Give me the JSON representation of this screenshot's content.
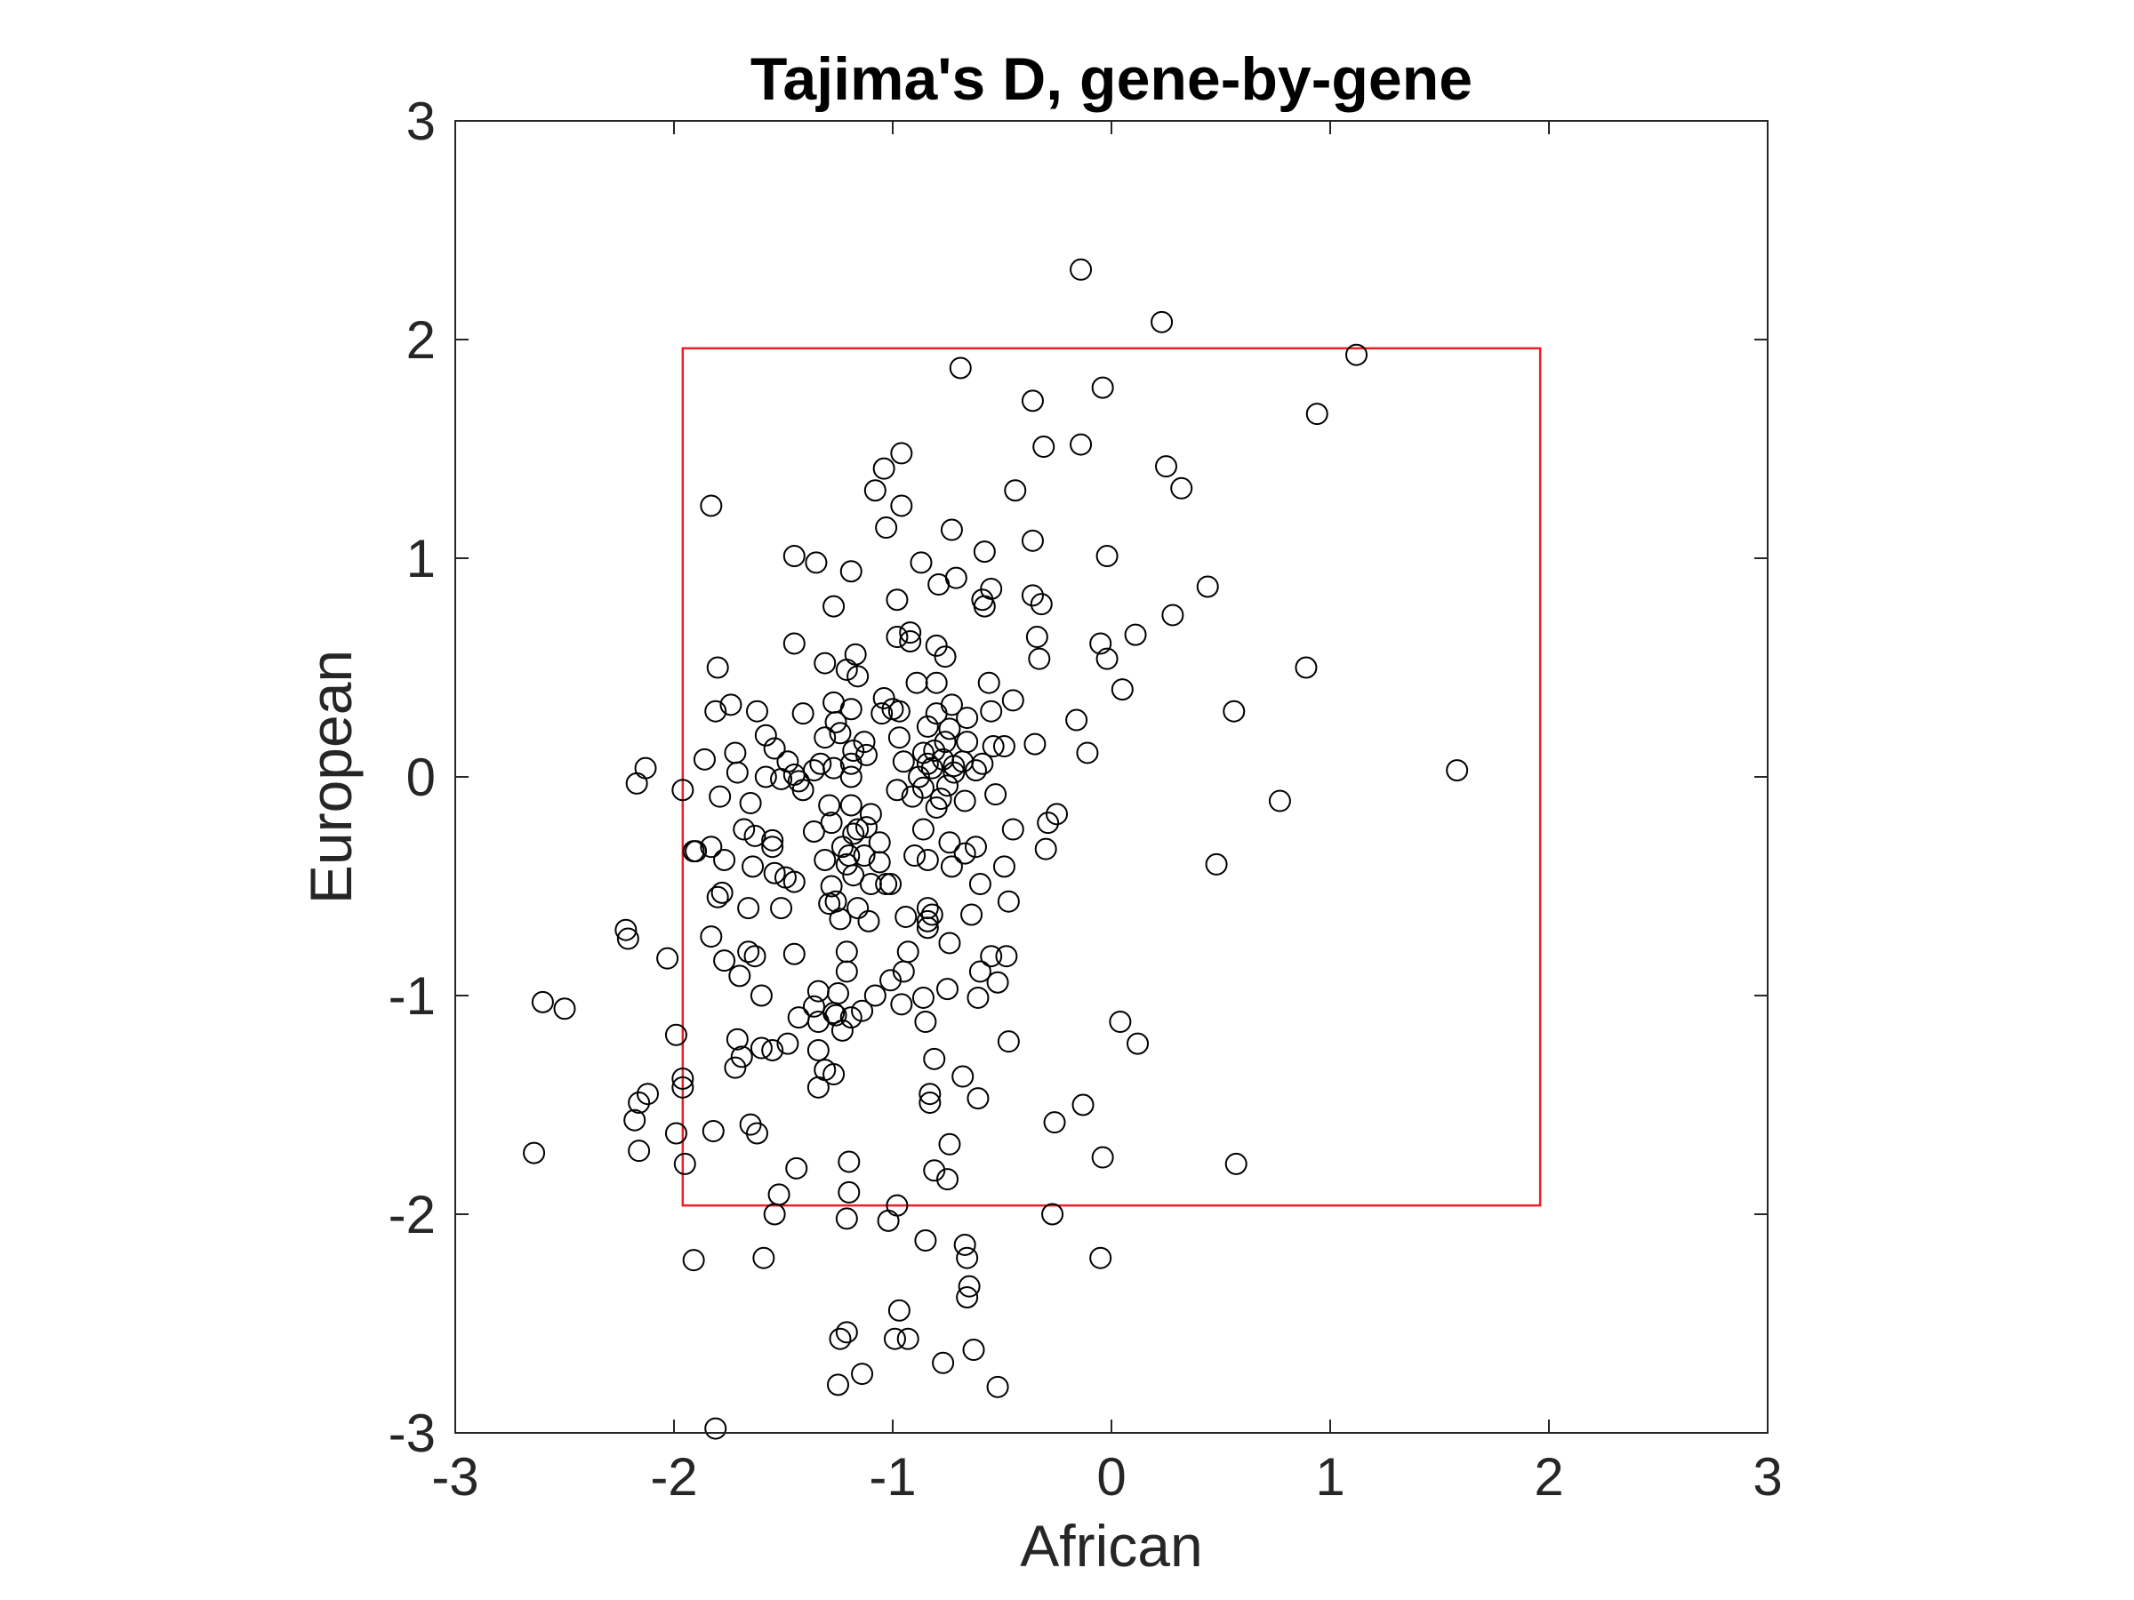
{
  "chart_data": {
    "type": "scatter",
    "title": "Tajima's D, gene-by-gene",
    "xlabel": "African",
    "ylabel": "European",
    "xlim": [
      -3,
      3
    ],
    "ylim": [
      -3,
      3
    ],
    "xticks": [
      "-3",
      "-2",
      "-1",
      "0",
      "1",
      "2",
      "3"
    ],
    "yticks": [
      "-3",
      "-2",
      "-1",
      "0",
      "1",
      "2",
      "3"
    ],
    "grid": false,
    "marker": "open-circle",
    "colors": {
      "marker": "#000000",
      "box": "#e8202a",
      "axis": "#262626"
    },
    "reference_box": {
      "x": [
        -1.96,
        1.96
      ],
      "y": [
        -1.96,
        1.96
      ]
    },
    "points": [
      [
        -0.14,
        2.32
      ],
      [
        0.23,
        2.08
      ],
      [
        1.12,
        1.93
      ],
      [
        -0.69,
        1.87
      ],
      [
        -0.04,
        1.78
      ],
      [
        -0.36,
        1.72
      ],
      [
        0.94,
        1.66
      ],
      [
        -0.31,
        1.51
      ],
      [
        -0.14,
        1.52
      ],
      [
        -0.96,
        1.48
      ],
      [
        -1.04,
        1.41
      ],
      [
        0.25,
        1.42
      ],
      [
        -0.44,
        1.31
      ],
      [
        0.32,
        1.32
      ],
      [
        -1.08,
        1.31
      ],
      [
        -1.83,
        1.24
      ],
      [
        -0.96,
        1.24
      ],
      [
        -1.03,
        1.14
      ],
      [
        -0.73,
        1.13
      ],
      [
        -0.36,
        1.08
      ],
      [
        -1.45,
        1.01
      ],
      [
        -0.58,
        1.03
      ],
      [
        -0.02,
        1.01
      ],
      [
        -0.87,
        0.98
      ],
      [
        -1.35,
        0.98
      ],
      [
        -1.19,
        0.94
      ],
      [
        -0.71,
        0.91
      ],
      [
        -0.79,
        0.88
      ],
      [
        -0.55,
        0.86
      ],
      [
        0.44,
        0.87
      ],
      [
        -0.36,
        0.83
      ],
      [
        -0.98,
        0.81
      ],
      [
        -0.59,
        0.81
      ],
      [
        -0.32,
        0.79
      ],
      [
        -1.27,
        0.78
      ],
      [
        -0.58,
        0.78
      ],
      [
        0.28,
        0.74
      ],
      [
        -0.92,
        0.66
      ],
      [
        -0.34,
        0.64
      ],
      [
        0.11,
        0.65
      ],
      [
        -0.98,
        0.64
      ],
      [
        -0.92,
        0.62
      ],
      [
        -0.05,
        0.61
      ],
      [
        -1.45,
        0.61
      ],
      [
        -0.8,
        0.6
      ],
      [
        -1.17,
        0.56
      ],
      [
        -0.76,
        0.55
      ],
      [
        -0.33,
        0.54
      ],
      [
        -0.02,
        0.54
      ],
      [
        0.89,
        0.5
      ],
      [
        -1.8,
        0.5
      ],
      [
        -1.31,
        0.52
      ],
      [
        -1.21,
        0.49
      ],
      [
        -1.16,
        0.46
      ],
      [
        -0.8,
        0.43
      ],
      [
        -0.89,
        0.43
      ],
      [
        -0.56,
        0.43
      ],
      [
        0.05,
        0.4
      ],
      [
        -0.45,
        0.35
      ],
      [
        -1.04,
        0.36
      ],
      [
        -1.27,
        0.34
      ],
      [
        -0.73,
        0.33
      ],
      [
        -1.19,
        0.31
      ],
      [
        -1.74,
        0.33
      ],
      [
        -1.62,
        0.3
      ],
      [
        -1.81,
        0.3
      ],
      [
        -1.41,
        0.29
      ],
      [
        -1.05,
        0.29
      ],
      [
        -1.0,
        0.31
      ],
      [
        -0.97,
        0.3
      ],
      [
        -0.8,
        0.29
      ],
      [
        -0.66,
        0.27
      ],
      [
        -0.55,
        0.3
      ],
      [
        -0.16,
        0.26
      ],
      [
        0.56,
        0.3
      ],
      [
        -1.26,
        0.25
      ],
      [
        -0.84,
        0.23
      ],
      [
        -1.24,
        0.2
      ],
      [
        -0.74,
        0.22
      ],
      [
        -1.58,
        0.19
      ],
      [
        -1.31,
        0.18
      ],
      [
        -1.13,
        0.16
      ],
      [
        -0.97,
        0.18
      ],
      [
        -0.76,
        0.16
      ],
      [
        -0.66,
        0.16
      ],
      [
        -0.54,
        0.14
      ],
      [
        -0.49,
        0.14
      ],
      [
        -0.35,
        0.15
      ],
      [
        -0.86,
        0.11
      ],
      [
        -0.81,
        0.12
      ],
      [
        -1.12,
        0.1
      ],
      [
        -1.18,
        0.12
      ],
      [
        -1.54,
        0.13
      ],
      [
        -1.72,
        0.11
      ],
      [
        -0.11,
        0.11
      ],
      [
        -1.86,
        0.08
      ],
      [
        -1.48,
        0.07
      ],
      [
        -1.33,
        0.06
      ],
      [
        -1.19,
        0.06
      ],
      [
        -0.95,
        0.07
      ],
      [
        -0.84,
        0.06
      ],
      [
        -0.77,
        0.08
      ],
      [
        -0.72,
        0.05
      ],
      [
        -0.68,
        0.07
      ],
      [
        -0.59,
        0.06
      ],
      [
        -0.72,
        0.02
      ],
      [
        -0.62,
        0.03
      ],
      [
        -2.13,
        0.04
      ],
      [
        1.58,
        0.03
      ],
      [
        -1.58,
        0.0
      ],
      [
        -1.45,
        0.01
      ],
      [
        -1.36,
        0.03
      ],
      [
        -1.27,
        0.04
      ],
      [
        -1.19,
        0.0
      ],
      [
        -0.88,
        0.0
      ],
      [
        -0.82,
        0.04
      ],
      [
        -1.71,
        0.02
      ],
      [
        -1.51,
        -0.01
      ],
      [
        -1.43,
        -0.02
      ],
      [
        -0.86,
        -0.05
      ],
      [
        -0.75,
        -0.04
      ],
      [
        -2.17,
        -0.03
      ],
      [
        -1.96,
        -0.06
      ],
      [
        -1.41,
        -0.06
      ],
      [
        -0.98,
        -0.06
      ],
      [
        -0.91,
        -0.09
      ],
      [
        -0.78,
        -0.1
      ],
      [
        -0.67,
        -0.11
      ],
      [
        -0.53,
        -0.08
      ],
      [
        -1.79,
        -0.09
      ],
      [
        -1.19,
        -0.13
      ],
      [
        -1.29,
        -0.13
      ],
      [
        -1.65,
        -0.12
      ],
      [
        -1.1,
        -0.17
      ],
      [
        -1.12,
        -0.23
      ],
      [
        -0.8,
        -0.14
      ],
      [
        -0.25,
        -0.17
      ],
      [
        0.77,
        -0.11
      ],
      [
        -1.28,
        -0.21
      ],
      [
        -1.68,
        -0.24
      ],
      [
        -1.36,
        -0.25
      ],
      [
        -1.18,
        -0.26
      ],
      [
        -1.16,
        -0.24
      ],
      [
        -0.86,
        -0.24
      ],
      [
        -0.29,
        -0.21
      ],
      [
        -0.45,
        -0.24
      ],
      [
        -1.63,
        -0.27
      ],
      [
        -1.55,
        -0.29
      ],
      [
        -1.55,
        -0.32
      ],
      [
        -1.23,
        -0.32
      ],
      [
        -1.06,
        -0.3
      ],
      [
        -0.74,
        -0.3
      ],
      [
        -0.62,
        -0.32
      ],
      [
        -0.3,
        -0.33
      ],
      [
        -1.83,
        -0.32
      ],
      [
        -1.9,
        -0.34
      ],
      [
        -1.91,
        -0.34
      ],
      [
        -1.2,
        -0.36
      ],
      [
        -1.13,
        -0.36
      ],
      [
        -0.9,
        -0.36
      ],
      [
        -0.84,
        -0.38
      ],
      [
        -0.67,
        -0.35
      ],
      [
        -1.31,
        -0.38
      ],
      [
        -1.77,
        -0.38
      ],
      [
        -1.64,
        -0.41
      ],
      [
        -1.21,
        -0.4
      ],
      [
        -1.06,
        -0.39
      ],
      [
        -0.73,
        -0.41
      ],
      [
        -0.49,
        -0.41
      ],
      [
        0.48,
        -0.4
      ],
      [
        -1.54,
        -0.44
      ],
      [
        -1.49,
        -0.46
      ],
      [
        -1.45,
        -0.48
      ],
      [
        -1.28,
        -0.5
      ],
      [
        -1.18,
        -0.45
      ],
      [
        -1.1,
        -0.49
      ],
      [
        -1.03,
        -0.49
      ],
      [
        -1.01,
        -0.49
      ],
      [
        -0.6,
        -0.49
      ],
      [
        -1.78,
        -0.53
      ],
      [
        -1.8,
        -0.55
      ],
      [
        -1.26,
        -0.57
      ],
      [
        -1.29,
        -0.58
      ],
      [
        -0.47,
        -0.57
      ],
      [
        -1.66,
        -0.6
      ],
      [
        -1.51,
        -0.6
      ],
      [
        -1.16,
        -0.6
      ],
      [
        -0.84,
        -0.6
      ],
      [
        -0.82,
        -0.63
      ],
      [
        -0.64,
        -0.63
      ],
      [
        -1.24,
        -0.65
      ],
      [
        -1.11,
        -0.66
      ],
      [
        -0.94,
        -0.64
      ],
      [
        -0.84,
        -0.66
      ],
      [
        -0.84,
        -0.69
      ],
      [
        -2.22,
        -0.7
      ],
      [
        -2.21,
        -0.74
      ],
      [
        -1.83,
        -0.73
      ],
      [
        -0.74,
        -0.76
      ],
      [
        -1.66,
        -0.8
      ],
      [
        -1.21,
        -0.8
      ],
      [
        -0.93,
        -0.8
      ],
      [
        -1.63,
        -0.82
      ],
      [
        -1.45,
        -0.81
      ],
      [
        -2.03,
        -0.83
      ],
      [
        -0.55,
        -0.82
      ],
      [
        -0.48,
        -0.82
      ],
      [
        -1.77,
        -0.84
      ],
      [
        -1.21,
        -0.89
      ],
      [
        -0.6,
        -0.89
      ],
      [
        -0.95,
        -0.89
      ],
      [
        -1.7,
        -0.91
      ],
      [
        -1.01,
        -0.93
      ],
      [
        -0.52,
        -0.94
      ],
      [
        -1.6,
        -1.0
      ],
      [
        -1.08,
        -1.0
      ],
      [
        -0.75,
        -0.97
      ],
      [
        -1.34,
        -0.98
      ],
      [
        -1.25,
        -0.99
      ],
      [
        -0.61,
        -1.01
      ],
      [
        -0.86,
        -1.01
      ],
      [
        -0.96,
        -1.04
      ],
      [
        -2.6,
        -1.03
      ],
      [
        -2.5,
        -1.06
      ],
      [
        -1.36,
        -1.05
      ],
      [
        -1.27,
        -1.08
      ],
      [
        -1.26,
        -1.09
      ],
      [
        -1.14,
        -1.07
      ],
      [
        -1.19,
        -1.1
      ],
      [
        -1.43,
        -1.1
      ],
      [
        -1.34,
        -1.12
      ],
      [
        -0.85,
        -1.12
      ],
      [
        0.04,
        -1.12
      ],
      [
        -1.99,
        -1.18
      ],
      [
        -1.23,
        -1.16
      ],
      [
        -1.71,
        -1.2
      ],
      [
        -1.48,
        -1.22
      ],
      [
        -0.47,
        -1.21
      ],
      [
        0.12,
        -1.22
      ],
      [
        -1.6,
        -1.24
      ],
      [
        -1.55,
        -1.25
      ],
      [
        -1.34,
        -1.25
      ],
      [
        -1.69,
        -1.28
      ],
      [
        -0.81,
        -1.29
      ],
      [
        -1.72,
        -1.33
      ],
      [
        -1.31,
        -1.34
      ],
      [
        -1.27,
        -1.36
      ],
      [
        -0.68,
        -1.37
      ],
      [
        -1.96,
        -1.38
      ],
      [
        -1.96,
        -1.42
      ],
      [
        -1.34,
        -1.42
      ],
      [
        -2.12,
        -1.45
      ],
      [
        -2.16,
        -1.49
      ],
      [
        -0.83,
        -1.45
      ],
      [
        -0.83,
        -1.49
      ],
      [
        -0.61,
        -1.47
      ],
      [
        -0.13,
        -1.5
      ],
      [
        -2.18,
        -1.57
      ],
      [
        -1.65,
        -1.59
      ],
      [
        -1.62,
        -1.63
      ],
      [
        -1.99,
        -1.63
      ],
      [
        -1.82,
        -1.62
      ],
      [
        -0.26,
        -1.58
      ],
      [
        -2.16,
        -1.71
      ],
      [
        -2.64,
        -1.72
      ],
      [
        -0.74,
        -1.68
      ],
      [
        -1.95,
        -1.77
      ],
      [
        -1.2,
        -1.76
      ],
      [
        -1.44,
        -1.79
      ],
      [
        -0.81,
        -1.8
      ],
      [
        -0.75,
        -1.84
      ],
      [
        -0.04,
        -1.74
      ],
      [
        0.57,
        -1.77
      ],
      [
        -1.2,
        -1.9
      ],
      [
        -1.52,
        -1.91
      ],
      [
        -0.98,
        -1.96
      ],
      [
        -1.54,
        -2.0
      ],
      [
        -1.21,
        -2.02
      ],
      [
        -1.02,
        -2.03
      ],
      [
        -0.27,
        -2.0
      ],
      [
        -0.85,
        -2.12
      ],
      [
        -0.67,
        -2.14
      ],
      [
        -1.91,
        -2.21
      ],
      [
        -1.59,
        -2.2
      ],
      [
        -0.66,
        -2.2
      ],
      [
        -0.05,
        -2.2
      ],
      [
        -0.65,
        -2.33
      ],
      [
        -0.66,
        -2.38
      ],
      [
        -0.97,
        -2.44
      ],
      [
        -1.21,
        -2.54
      ],
      [
        -1.24,
        -2.57
      ],
      [
        -0.99,
        -2.57
      ],
      [
        -0.93,
        -2.57
      ],
      [
        -0.63,
        -2.62
      ],
      [
        -1.14,
        -2.73
      ],
      [
        -0.77,
        -2.68
      ],
      [
        -1.25,
        -2.78
      ],
      [
        -0.52,
        -2.79
      ],
      [
        -1.81,
        -2.98
      ]
    ]
  }
}
